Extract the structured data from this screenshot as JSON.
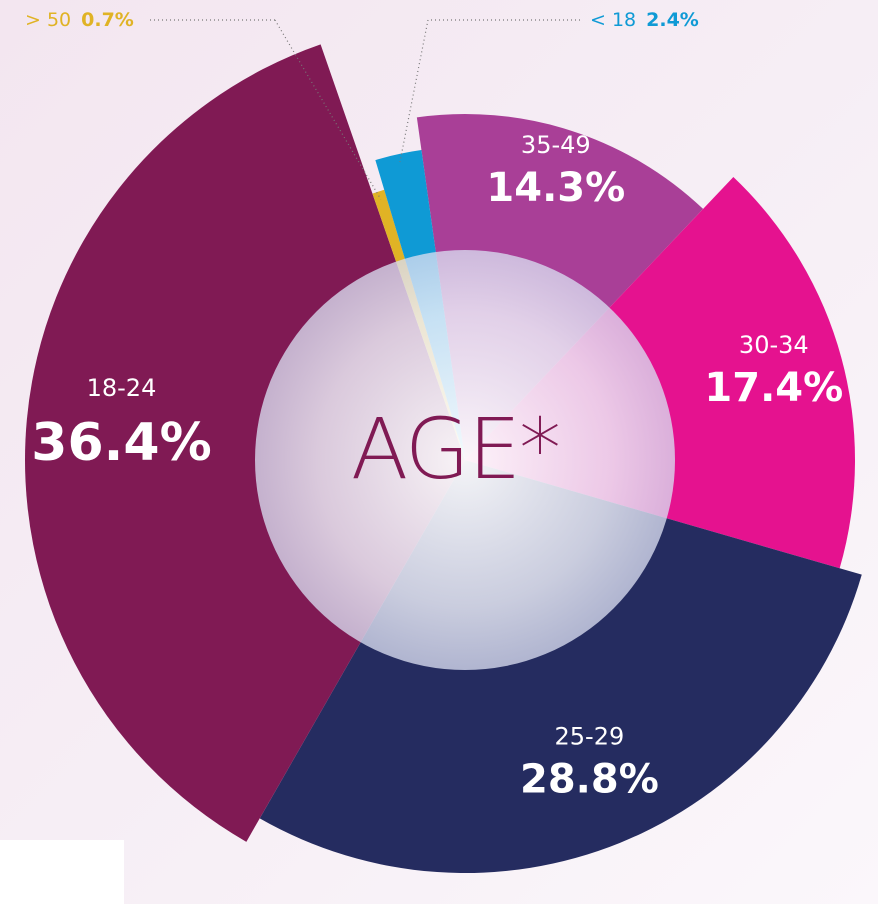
{
  "chart_data": {
    "type": "pie",
    "center_label": "AGE*",
    "categories": [
      "35-49",
      "30-34",
      "25-29",
      "18-24",
      "> 50",
      "< 18"
    ],
    "values": [
      14.3,
      17.4,
      28.8,
      36.4,
      0.7,
      2.4
    ],
    "value_labels": [
      "14.3%",
      "17.4%",
      "28.8%",
      "36.4%",
      "0.7%",
      "2.4%"
    ],
    "colors": [
      "#a93f97",
      "#e5128f",
      "#252c60",
      "#801a54",
      "#e0b325",
      "#0f9ad5"
    ]
  }
}
